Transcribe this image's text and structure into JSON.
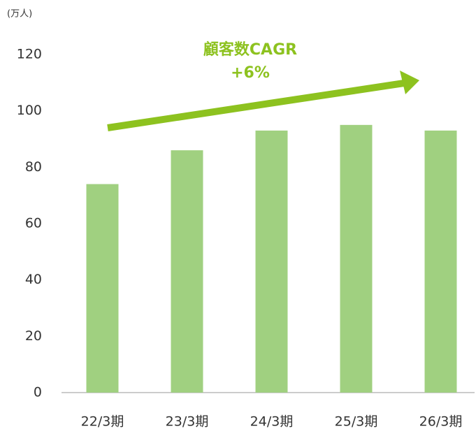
{
  "chart_data": {
    "type": "bar",
    "y_unit": "(万人)",
    "annotations": [
      "顧客数CAGR",
      "+6%"
    ],
    "categories": [
      "22/3期",
      "23/3期",
      "24/3期",
      "25/3期",
      "26/3期"
    ],
    "values": [
      74,
      86,
      93,
      95,
      93
    ],
    "color": "#a0d080",
    "ylim": [
      0,
      120
    ],
    "yticks": [
      0,
      20,
      40,
      60,
      80,
      100,
      120
    ],
    "grid": false
  }
}
